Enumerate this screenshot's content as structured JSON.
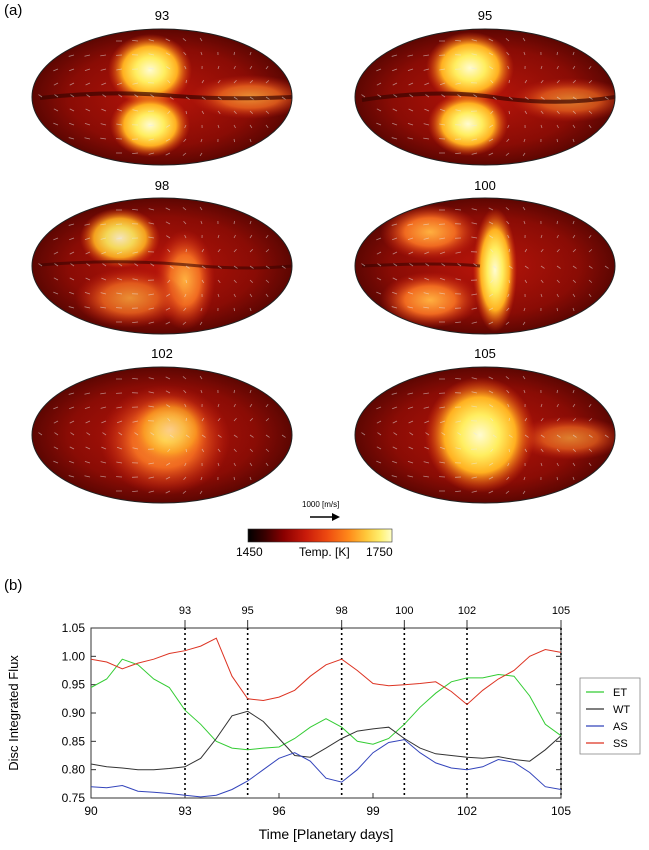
{
  "figure": {
    "panel_a_label": "(a)",
    "panel_b_label": "(b)",
    "maps": [
      {
        "title": "93"
      },
      {
        "title": "95"
      },
      {
        "title": "98"
      },
      {
        "title": "100"
      },
      {
        "title": "102"
      },
      {
        "title": "105"
      }
    ],
    "wind_scale_label": "1000 [m/s]",
    "colorbar": {
      "min_label": "1450",
      "title": "Temp. [K]",
      "max_label": "1750",
      "colors": [
        "#000000",
        "#3a0000",
        "#8b0000",
        "#c81a0a",
        "#ee4a10",
        "#ff8a1a",
        "#ffc83a",
        "#fff070",
        "#ffffc8"
      ]
    }
  },
  "chart_data": {
    "type": "line",
    "title": "",
    "xlabel": "Time [Planetary days]",
    "ylabel": "Disc Integrated Flux",
    "xlim": [
      90,
      105
    ],
    "ylim": [
      0.75,
      1.05
    ],
    "xticks": [
      "90",
      "93",
      "96",
      "99",
      "102",
      "105"
    ],
    "xtick_values": [
      90,
      93,
      96,
      99,
      102,
      105
    ],
    "yticks": [
      "0.75",
      "0.80",
      "0.85",
      "0.90",
      "0.95",
      "1.00",
      "1.05"
    ],
    "ytick_values": [
      0.75,
      0.8,
      0.85,
      0.9,
      0.95,
      1.0,
      1.05
    ],
    "top_ticks": [
      "93",
      "95",
      "98",
      "100",
      "102",
      "105"
    ],
    "top_tick_values": [
      93,
      95,
      98,
      100,
      102,
      105
    ],
    "legend_placement": "right",
    "series": [
      {
        "name": "ET",
        "color": "#33cc33",
        "x": [
          90,
          90.5,
          91,
          91.5,
          92,
          92.5,
          93,
          93.5,
          94,
          94.5,
          95,
          95.5,
          96,
          96.5,
          97,
          97.5,
          98,
          98.5,
          99,
          99.5,
          100,
          100.5,
          101,
          101.5,
          102,
          102.5,
          103,
          103.5,
          104,
          104.5,
          105
        ],
        "y": [
          0.945,
          0.96,
          0.995,
          0.985,
          0.96,
          0.945,
          0.905,
          0.88,
          0.85,
          0.838,
          0.835,
          0.838,
          0.84,
          0.855,
          0.875,
          0.89,
          0.875,
          0.85,
          0.845,
          0.855,
          0.88,
          0.91,
          0.935,
          0.955,
          0.962,
          0.962,
          0.968,
          0.965,
          0.93,
          0.88,
          0.86
        ]
      },
      {
        "name": "WT",
        "color": "#333333",
        "x": [
          90,
          90.5,
          91,
          91.5,
          92,
          92.5,
          93,
          93.5,
          94,
          94.5,
          95,
          95.5,
          96,
          96.5,
          97,
          97.5,
          98,
          98.5,
          99,
          99.5,
          100,
          100.5,
          101,
          101.5,
          102,
          102.5,
          103,
          103.5,
          104,
          104.5,
          105
        ],
        "y": [
          0.81,
          0.805,
          0.803,
          0.8,
          0.8,
          0.802,
          0.805,
          0.82,
          0.855,
          0.895,
          0.903,
          0.885,
          0.855,
          0.825,
          0.822,
          0.838,
          0.855,
          0.868,
          0.872,
          0.875,
          0.855,
          0.838,
          0.828,
          0.825,
          0.822,
          0.82,
          0.823,
          0.818,
          0.815,
          0.835,
          0.86
        ]
      },
      {
        "name": "AS",
        "color": "#3344bb",
        "x": [
          90,
          90.5,
          91,
          91.5,
          92,
          92.5,
          93,
          93.5,
          94,
          94.5,
          95,
          95.5,
          96,
          96.5,
          97,
          97.5,
          98,
          98.5,
          99,
          99.5,
          100,
          100.5,
          101,
          101.5,
          102,
          102.5,
          103,
          103.5,
          104,
          104.5,
          105
        ],
        "y": [
          0.77,
          0.768,
          0.772,
          0.762,
          0.76,
          0.758,
          0.755,
          0.752,
          0.755,
          0.765,
          0.78,
          0.8,
          0.82,
          0.83,
          0.815,
          0.785,
          0.778,
          0.8,
          0.83,
          0.848,
          0.853,
          0.83,
          0.812,
          0.803,
          0.8,
          0.805,
          0.818,
          0.813,
          0.795,
          0.77,
          0.765
        ]
      },
      {
        "name": "SS",
        "color": "#dd3322",
        "x": [
          90,
          90.5,
          91,
          91.5,
          92,
          92.5,
          93,
          93.5,
          94,
          94.5,
          95,
          95.5,
          96,
          96.5,
          97,
          97.5,
          98,
          98.5,
          99,
          99.5,
          100,
          100.5,
          101,
          101.5,
          102,
          102.5,
          103,
          103.5,
          104,
          104.5,
          105
        ],
        "y": [
          0.995,
          0.99,
          0.978,
          0.988,
          0.995,
          1.005,
          1.01,
          1.018,
          1.032,
          0.965,
          0.925,
          0.922,
          0.928,
          0.94,
          0.965,
          0.985,
          0.995,
          0.975,
          0.952,
          0.948,
          0.95,
          0.952,
          0.955,
          0.938,
          0.915,
          0.94,
          0.96,
          0.975,
          1.0,
          1.012,
          1.007
        ]
      }
    ]
  }
}
